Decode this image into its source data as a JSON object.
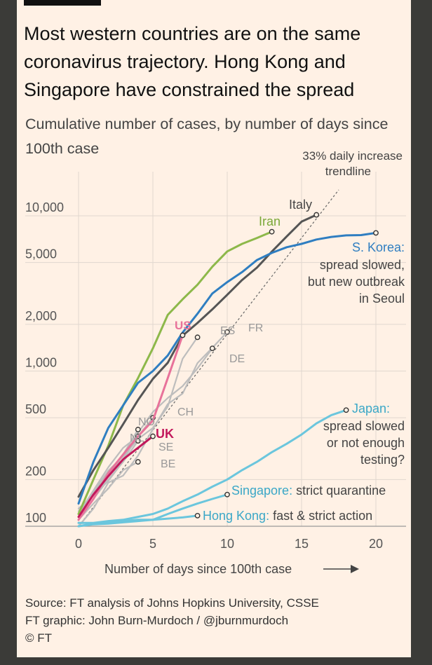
{
  "card": {
    "title": "Most western countries are on the same coronavirus trajectory. Hong Kong and Singapore have constrained the spread",
    "subtitle": "Cumulative number of cases, by number of days since 100th case",
    "source_line1": "Source: FT analysis of Johns Hopkins University, CSSE",
    "source_line2": "FT graphic: John Burn-Murdoch / @jburnmurdoch",
    "source_line3": "© FT"
  },
  "chart_data": {
    "type": "line",
    "title": "Most western countries are on the same coronavirus trajectory. Hong Kong and Singapore have constrained the spread",
    "subtitle": "Cumulative number of cases, by number of days since 100th case",
    "xlabel": "Number of days since 100th case",
    "ylabel": "",
    "xlim": [
      0,
      22
    ],
    "ylim": [
      100,
      20000
    ],
    "yscale": "log",
    "xticks": [
      0,
      5,
      10,
      15,
      20
    ],
    "xtick_labels": [
      "0",
      "5",
      "10",
      "15",
      "20"
    ],
    "yticks": [
      100,
      200,
      500,
      1000,
      2000,
      5000,
      10000
    ],
    "ytick_labels": [
      "100",
      "200",
      "500",
      "1,000",
      "2,000",
      "5,000",
      "10,000"
    ],
    "trendline": {
      "name": "33% daily increase trendline",
      "label_line1": "33% daily increase",
      "label_line2": "trendline",
      "growth_rate": 0.33,
      "x": [
        0,
        17.5
      ]
    },
    "series": [
      {
        "name": "Iran",
        "color": "#8db84a",
        "highlight": true,
        "x": [
          0,
          1,
          2,
          3,
          4,
          5,
          6,
          7,
          8,
          9,
          10,
          11,
          12,
          13
        ],
        "y": [
          120,
          200,
          330,
          600,
          900,
          1400,
          2300,
          2900,
          3600,
          4700,
          5900,
          6600,
          7200,
          7900
        ],
        "end_marker": true
      },
      {
        "name": "Italy",
        "color": "#555555",
        "highlight": true,
        "x": [
          0,
          1,
          2,
          3,
          4,
          5,
          6,
          7,
          8,
          9,
          10,
          11,
          12,
          13,
          14,
          15,
          16
        ],
        "y": [
          155,
          230,
          320,
          455,
          650,
          890,
          1130,
          1690,
          2040,
          2500,
          3100,
          3860,
          4640,
          5880,
          7370,
          9170,
          10150
        ],
        "end_marker": true
      },
      {
        "name": "S. Korea",
        "color": "#2f7ec1",
        "highlight": true,
        "x": [
          0,
          1,
          2,
          3,
          4,
          5,
          6,
          7,
          8,
          9,
          10,
          11,
          12,
          13,
          14,
          15,
          16,
          17,
          18,
          19,
          20
        ],
        "y": [
          140,
          260,
          430,
          600,
          840,
          1000,
          1260,
          1770,
          2340,
          3160,
          3740,
          4340,
          5190,
          5770,
          6280,
          6600,
          7040,
          7310,
          7480,
          7510,
          7760
        ],
        "end_marker": true
      },
      {
        "name": "US",
        "color": "#e8729a",
        "highlight": true,
        "x": [
          0,
          1,
          2,
          3,
          4,
          5,
          6,
          7
        ],
        "y": [
          110,
          150,
          220,
          290,
          380,
          480,
          900,
          1700
        ],
        "end_marker": true
      },
      {
        "name": "UK",
        "color": "#c2185b",
        "highlight": true,
        "x": [
          0,
          1,
          2,
          3,
          4,
          5
        ],
        "y": [
          115,
          160,
          210,
          270,
          320,
          380
        ],
        "end_marker": true
      },
      {
        "name": "Japan",
        "color": "#6bc6dd",
        "highlight": true,
        "x": [
          0,
          1,
          2,
          3,
          4,
          5,
          6,
          7,
          8,
          9,
          10,
          11,
          12,
          13,
          14,
          15,
          16,
          17,
          18
        ],
        "y": [
          105,
          105,
          108,
          110,
          115,
          120,
          130,
          145,
          160,
          180,
          200,
          230,
          260,
          300,
          340,
          390,
          460,
          520,
          560
        ],
        "end_marker": true
      },
      {
        "name": "Singapore",
        "color": "#6bc6dd",
        "highlight": true,
        "x": [
          0,
          1,
          2,
          3,
          4,
          5,
          6,
          7,
          8,
          9,
          10
        ],
        "y": [
          100,
          103,
          104,
          106,
          108,
          110,
          120,
          130,
          140,
          150,
          160
        ],
        "end_marker": true
      },
      {
        "name": "Hong Kong",
        "color": "#6bc6dd",
        "highlight": true,
        "x": [
          0,
          1,
          2,
          3,
          4,
          5,
          6,
          7,
          8
        ],
        "y": [
          100,
          104,
          106,
          108,
          110,
          110,
          112,
          114,
          117
        ],
        "end_marker": true
      },
      {
        "name": "ES",
        "color": "#bdbdbd",
        "highlight": false,
        "x": [
          0,
          1,
          2,
          3,
          4,
          5,
          6,
          7,
          8
        ],
        "y": [
          120,
          165,
          228,
          282,
          365,
          430,
          590,
          1200,
          1650
        ],
        "end_marker": true
      },
      {
        "name": "FR",
        "color": "#bdbdbd",
        "highlight": false,
        "x": [
          0,
          1,
          2,
          3,
          4,
          5,
          6,
          7,
          8,
          9,
          10
        ],
        "y": [
          100,
          130,
          191,
          212,
          285,
          423,
          613,
          716,
          1126,
          1412,
          1784
        ],
        "end_marker": true
      },
      {
        "name": "DE",
        "color": "#bdbdbd",
        "highlight": false,
        "x": [
          0,
          1,
          2,
          3,
          4,
          5,
          6,
          7,
          8,
          9
        ],
        "y": [
          130,
          159,
          196,
          262,
          400,
          545,
          670,
          800,
          1040,
          1400
        ],
        "end_marker": true
      },
      {
        "name": "CH",
        "color": "#bdbdbd",
        "highlight": false,
        "x": [
          0,
          1,
          2,
          3,
          4,
          5
        ],
        "y": [
          120,
          170,
          240,
          320,
          380,
          500
        ],
        "end_marker": true
      },
      {
        "name": "NO",
        "color": "#bdbdbd",
        "highlight": false,
        "x": [
          0,
          1,
          2,
          3,
          4
        ],
        "y": [
          110,
          150,
          210,
          290,
          420
        ],
        "end_marker": true
      },
      {
        "name": "NL",
        "color": "#bdbdbd",
        "highlight": false,
        "x": [
          0,
          1,
          2,
          3,
          4
        ],
        "y": [
          125,
          160,
          225,
          270,
          380
        ],
        "end_marker": true
      },
      {
        "name": "SE",
        "color": "#bdbdbd",
        "highlight": false,
        "x": [
          0,
          1,
          2,
          3,
          4
        ],
        "y": [
          110,
          150,
          200,
          260,
          355
        ],
        "end_marker": true
      },
      {
        "name": "BE",
        "color": "#bdbdbd",
        "highlight": false,
        "x": [
          0,
          1,
          2,
          3,
          4
        ],
        "y": [
          110,
          140,
          175,
          230,
          260
        ],
        "end_marker": true
      }
    ],
    "annotations": [
      {
        "series": "Iran",
        "label": "Iran"
      },
      {
        "series": "Italy",
        "label": "Italy"
      },
      {
        "series": "S. Korea",
        "label": "S. Korea:",
        "note": [
          "spread slowed,",
          "but new outbreak",
          "in Seoul"
        ]
      },
      {
        "series": "US",
        "label": "US"
      },
      {
        "series": "UK",
        "label": "UK"
      },
      {
        "series": "Japan",
        "label": "Japan:",
        "note": [
          "spread slowed",
          "or not enough",
          "testing?"
        ]
      },
      {
        "series": "Singapore",
        "label": "Singapore:",
        "note": [
          "strict quarantine"
        ]
      },
      {
        "series": "Hong Kong",
        "label": "Hong Kong:",
        "note": [
          "fast & strict action"
        ]
      }
    ]
  }
}
